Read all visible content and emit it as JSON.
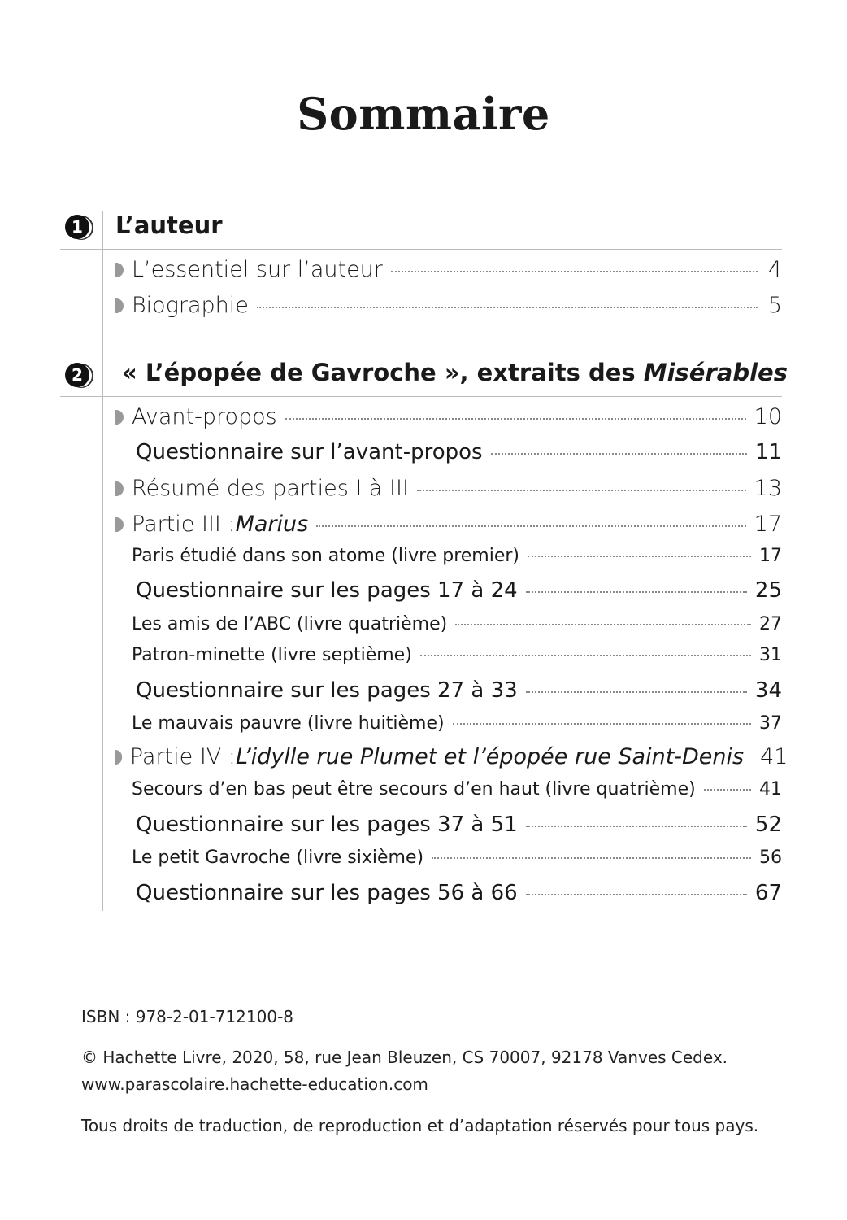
{
  "title": "Sommaire",
  "sections": [
    {
      "number": "1",
      "heading": "L’auteur",
      "heading_italic": ""
    },
    {
      "number": "2",
      "heading": "« L’épopée de Gavroche », extraits des ",
      "heading_italic": "Misérables"
    }
  ],
  "entries": [
    {
      "type": "big",
      "bullet": true,
      "label": "L’essentiel sur l’auteur",
      "italic": "",
      "page": "4"
    },
    {
      "type": "big",
      "bullet": true,
      "label": "Biographie",
      "italic": "",
      "page": "5"
    },
    {
      "type": "big",
      "bullet": true,
      "label": "Avant-propos",
      "italic": "",
      "page": "10"
    },
    {
      "type": "q",
      "bullet": false,
      "label": "Questionnaire sur l’avant-propos",
      "italic": "",
      "page": "11"
    },
    {
      "type": "big",
      "bullet": true,
      "label": "Résumé des parties I à III",
      "italic": "",
      "page": "13"
    },
    {
      "type": "big",
      "bullet": true,
      "label": "Partie III : ",
      "italic": "Marius",
      "page": "17"
    },
    {
      "type": "small",
      "bullet": false,
      "label": "Paris étudié dans son atome (livre premier)",
      "italic": "",
      "page": "17"
    },
    {
      "type": "q",
      "bullet": false,
      "label": "Questionnaire sur les pages 17 à 24",
      "italic": "",
      "page": "25"
    },
    {
      "type": "small",
      "bullet": false,
      "label": "Les amis de l’ABC (livre quatrième)",
      "italic": "",
      "page": "27"
    },
    {
      "type": "small",
      "bullet": false,
      "label": "Patron-minette (livre septième)",
      "italic": "",
      "page": "31"
    },
    {
      "type": "q",
      "bullet": false,
      "label": "Questionnaire sur les pages 27 à 33",
      "italic": "",
      "page": "34"
    },
    {
      "type": "small",
      "bullet": false,
      "label": "Le mauvais pauvre (livre huitième)",
      "italic": "",
      "page": "37"
    },
    {
      "type": "big",
      "bullet": true,
      "label": "Partie IV : ",
      "italic": "L’idylle rue Plumet et l’épopée rue Saint-Denis",
      "page": "41"
    },
    {
      "type": "small",
      "bullet": false,
      "label": "Secours d’en bas peut être secours d’en haut (livre quatrième)",
      "italic": "",
      "page": "41"
    },
    {
      "type": "q",
      "bullet": false,
      "label": "Questionnaire sur les pages 37 à 51",
      "italic": "",
      "page": "52"
    },
    {
      "type": "small",
      "bullet": false,
      "label": "Le petit Gavroche (livre sixième)",
      "italic": "",
      "page": "56"
    },
    {
      "type": "q",
      "bullet": false,
      "label": "Questionnaire sur les pages 56 à 66",
      "italic": "",
      "page": "67"
    }
  ],
  "footer": {
    "isbn": "ISBN : 978-2-01-712100-8",
    "copyright": "© Hachette Livre, 2020, 58, rue Jean Bleuzen, CS 70007, 92178 Vanves Cedex.",
    "website": "www.parascolaire.hachette-education.com",
    "rights": "Tous droits de traduction, de reproduction et d’adaptation réservés pour tous pays."
  }
}
